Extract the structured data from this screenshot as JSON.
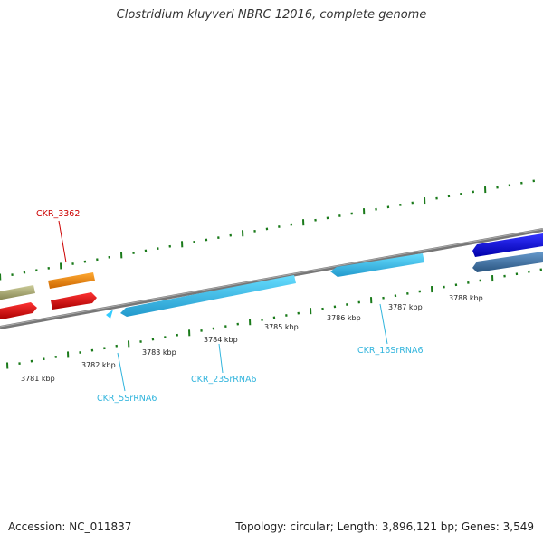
{
  "title": "Clostridium kluyveri NBRC 12016, complete genome",
  "footer": {
    "accession": "Accession: NC_011837",
    "summary": "Topology: circular; Length: 3,896,121 bp; Genes: 3,549"
  },
  "ruler": {
    "labels": [
      "3781 kbp",
      "3782 kbp",
      "3783 kbp",
      "3784 kbp",
      "3785 kbp",
      "3786 kbp",
      "3787 kbp",
      "3788 kbp"
    ]
  },
  "genes": {
    "labeled": [
      {
        "name": "CKR_3362",
        "color": "#cc0000"
      },
      {
        "name": "CKR_5SrRNA6",
        "color": "#33b5dd"
      },
      {
        "name": "CKR_23SrRNA6",
        "color": "#33b5dd"
      },
      {
        "name": "CKR_16SrRNA6",
        "color": "#33b5dd"
      }
    ]
  },
  "colors": {
    "backbone": "#888888",
    "ticks": "#1a7a1a",
    "rrna": "#33ccff",
    "cds_red": "#ee1111",
    "cds_orange": "#ff8800",
    "cds_khaki": "#bbbb88",
    "cds_blue": "#1111dd",
    "cds_steel": "#4477aa"
  }
}
